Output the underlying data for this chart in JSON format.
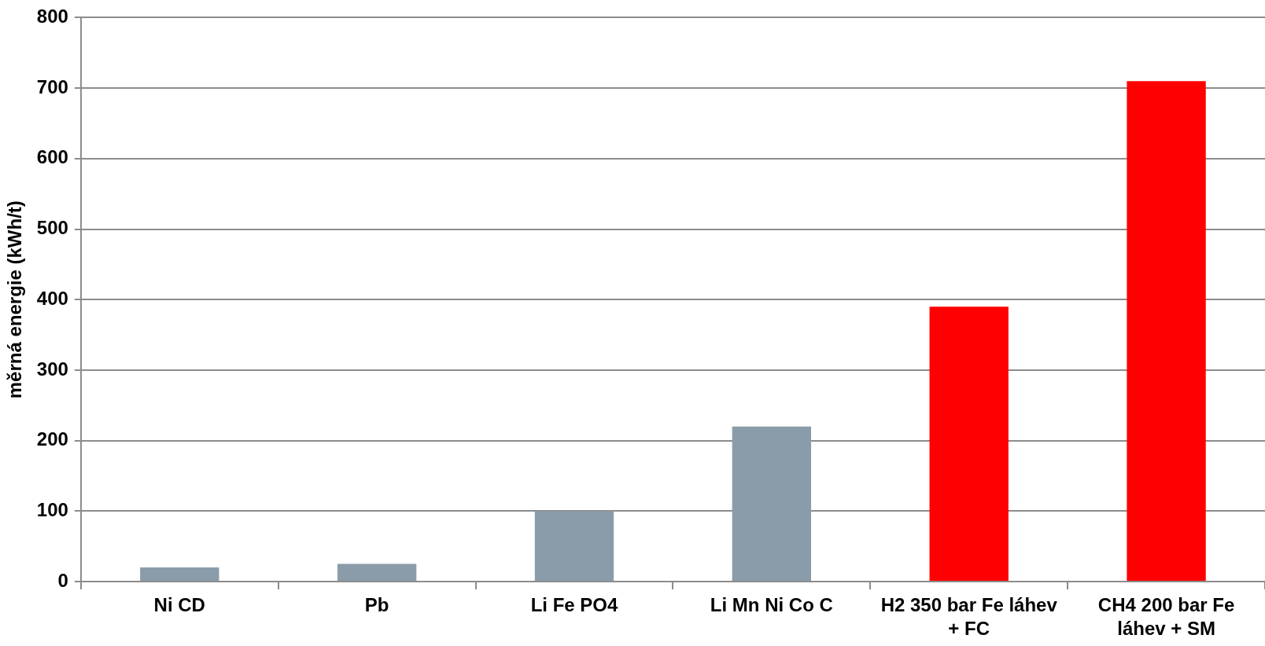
{
  "chart_data": {
    "type": "bar",
    "ylabel": "měrná energie (kWh/t)",
    "categories": [
      "Ni CD",
      "Pb",
      "Li Fe PO4",
      "Li Mn Ni Co C",
      "H2 350 bar Fe láhev + FC",
      "CH4 200 bar Fe láhev + SM"
    ],
    "values": [
      20,
      25,
      100,
      220,
      390,
      710
    ],
    "colors": [
      "#8a9caa",
      "#8a9caa",
      "#8a9caa",
      "#8a9caa",
      "#ff0000",
      "#ff0000"
    ],
    "ylim": [
      0,
      800
    ],
    "yticks": [
      0,
      100,
      200,
      300,
      400,
      500,
      600,
      700,
      800
    ],
    "grid": "y",
    "legend": false
  }
}
